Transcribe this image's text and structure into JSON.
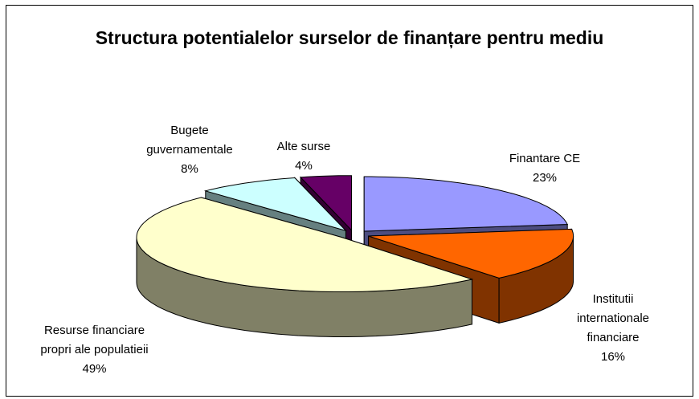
{
  "chart_data": {
    "type": "pie",
    "title": "Structura potentialelor surselor de finanțare pentru mediu",
    "categories": [
      "Finantare CE",
      "Institutii internationale financiare",
      "Resurse financiare propri ale populatieii",
      "Bugete guvernamentale",
      "Alte surse"
    ],
    "values": [
      23,
      16,
      49,
      8,
      4
    ],
    "value_labels": [
      "23%",
      "16%",
      "49%",
      "8%",
      "4%"
    ],
    "colors": [
      "#9999ff",
      "#ff6600",
      "#ffffcc",
      "#ccffff",
      "#660066"
    ]
  }
}
